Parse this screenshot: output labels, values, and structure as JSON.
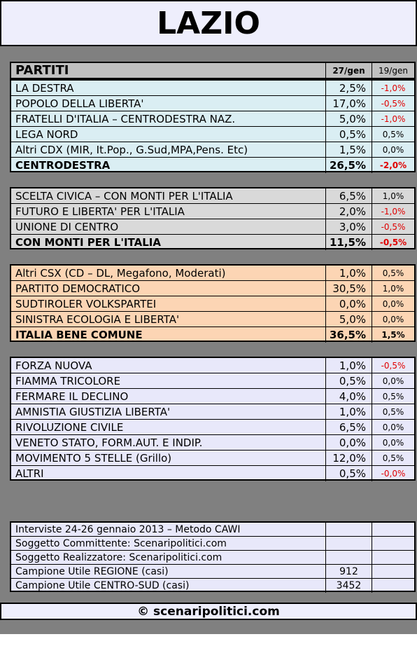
{
  "title": "LAZIO",
  "header": {
    "label": "PARTITI",
    "col1": "27/gen",
    "col2": "19/gen"
  },
  "groups": [
    {
      "rows": [
        [
          "LA DESTRA",
          "2,5%",
          "-1,0%"
        ],
        [
          "POPOLO DELLA LIBERTA'",
          "17,0%",
          "-0,5%"
        ],
        [
          "FRATELLI D'ITALIA – CENTRODESTRA NAZ.",
          "5,0%",
          "-1,0%"
        ],
        [
          "LEGA NORD",
          "0,5%",
          "0,5%"
        ],
        [
          "Altri CDX (MIR, It.Pop., G.Sud,MPA,Pens. Etc)",
          "1,5%",
          "0,0%"
        ]
      ],
      "total": [
        "CENTRODESTRA",
        "26,5%",
        "-2,0%"
      ]
    },
    {
      "rows": [
        [
          "SCELTA CIVICA – CON MONTI PER L'ITALIA",
          "6,5%",
          "1,0%"
        ],
        [
          "FUTURO E LIBERTA' PER L'ITALIA",
          "2,0%",
          "-1,0%"
        ],
        [
          "UNIONE DI CENTRO",
          "3,0%",
          "-0,5%"
        ]
      ],
      "total": [
        "CON MONTI PER L'ITALIA",
        "11,5%",
        "-0,5%"
      ]
    },
    {
      "rows": [
        [
          "Altri CSX (CD – DL, Megafono, Moderati)",
          "1,0%",
          "0,5%"
        ],
        [
          "PARTITO DEMOCRATICO",
          "30,5%",
          "1,0%"
        ],
        [
          "SUDTIROLER VOLKSPARTEI",
          "0,0%",
          "0,0%"
        ],
        [
          "SINISTRA ECOLOGIA E LIBERTA'",
          "5,0%",
          "0,0%"
        ]
      ],
      "total": [
        "ITALIA BENE COMUNE",
        "36,5%",
        "1,5%"
      ]
    },
    {
      "rows": [
        [
          "FORZA NUOVA",
          "1,0%",
          "-0,5%"
        ],
        [
          "FIAMMA TRICOLORE",
          "0,5%",
          "0,0%"
        ],
        [
          "FERMARE IL DECLINO",
          "4,0%",
          "0,5%"
        ],
        [
          "AMNISTIA GIUSTIZIA LIBERTA'",
          "1,0%",
          "0,5%"
        ],
        [
          "RIVOLUZIONE CIVILE",
          "6,5%",
          "0,0%"
        ],
        [
          "VENETO STATO, FORM.AUT. E INDIP.",
          "0,0%",
          "0,0%"
        ],
        [
          "MOVIMENTO 5 STELLE (Grillo)",
          "12,0%",
          "0,5%"
        ],
        [
          "ALTRI",
          "0,5%",
          "-0,0%"
        ]
      ]
    }
  ],
  "info": [
    {
      "label": "Interviste 24-26 gennaio 2013 – Metodo CAWI"
    },
    {
      "label": "Soggetto Committente: Scenaripolitici.com"
    },
    {
      "label": "Soggetto Realizzatore: Scenaripolitici.com"
    },
    {
      "label": "Campione Utile REGIONE (casi)",
      "value": "912"
    },
    {
      "label": "Campione Utile CENTRO-SUD (casi)",
      "value": "3452"
    }
  ],
  "footer": "© scenaripolitici.com"
}
